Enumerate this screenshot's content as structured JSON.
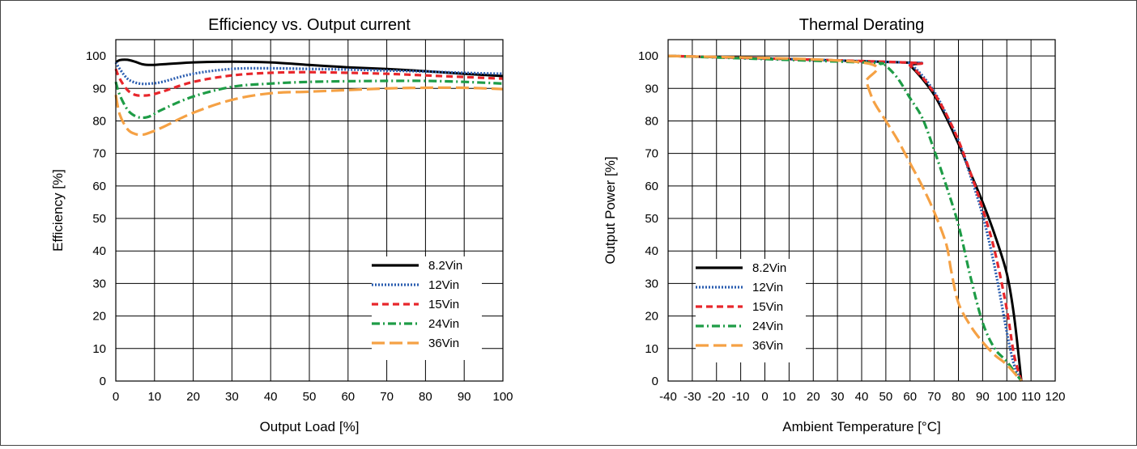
{
  "chart_data": [
    {
      "type": "line",
      "title": "Efficiency vs. Output current",
      "xlabel": "Output Load [%]",
      "ylabel": "Efficiency [%]",
      "xlim": [
        0,
        100
      ],
      "ylim": [
        0,
        105
      ],
      "xticks": [
        "0",
        "10",
        "20",
        "30",
        "40",
        "50",
        "60",
        "70",
        "80",
        "90",
        "100"
      ],
      "yticks": [
        "0",
        "10",
        "20",
        "30",
        "40",
        "50",
        "60",
        "70",
        "80",
        "90",
        "100"
      ],
      "grid": true,
      "legend_position": "bottom-right",
      "series": [
        {
          "name": "8.2Vin",
          "color": "#000000",
          "dash": "solid",
          "x": [
            0,
            1,
            3,
            5,
            7,
            9,
            12,
            20,
            30,
            40,
            50,
            60,
            70,
            80,
            90,
            100
          ],
          "y": [
            98,
            98.7,
            98.8,
            98.2,
            97.4,
            97.2,
            97.4,
            98,
            98.2,
            98,
            97.2,
            96.5,
            96,
            95.3,
            94.5,
            93.8
          ]
        },
        {
          "name": "12Vin",
          "color": "#2a5db0",
          "dash": "dotted",
          "x": [
            0,
            1,
            3,
            5,
            7,
            9,
            12,
            20,
            30,
            40,
            50,
            60,
            70,
            80,
            90,
            100
          ],
          "y": [
            98,
            96,
            93,
            91.8,
            91.4,
            91.5,
            92,
            94.5,
            96,
            96.2,
            96,
            95.8,
            95.5,
            95.2,
            94.8,
            94.5
          ]
        },
        {
          "name": "15Vin",
          "color": "#e8262b",
          "dash": "dashed",
          "x": [
            0,
            1,
            3,
            5,
            7,
            9,
            12,
            20,
            30,
            40,
            50,
            60,
            70,
            80,
            90,
            100
          ],
          "y": [
            96,
            93,
            89.5,
            88,
            87.8,
            88,
            89,
            92,
            94,
            94.8,
            95,
            94.8,
            94.5,
            94,
            93.5,
            93
          ]
        },
        {
          "name": "24Vin",
          "color": "#1e9c46",
          "dash": "dashdot",
          "x": [
            0,
            1,
            3,
            5,
            7,
            9,
            12,
            20,
            30,
            40,
            50,
            60,
            70,
            80,
            90,
            100
          ],
          "y": [
            92,
            88,
            83.5,
            81.5,
            81,
            81.5,
            83.5,
            87.5,
            90.5,
            91.5,
            92,
            92.2,
            92.3,
            92.3,
            92,
            91.5
          ]
        },
        {
          "name": "36Vin",
          "color": "#f5a144",
          "dash": "longdash",
          "x": [
            0,
            1,
            3,
            5,
            7,
            9,
            12,
            20,
            30,
            40,
            50,
            60,
            70,
            80,
            90,
            100
          ],
          "y": [
            88,
            82,
            77.5,
            76,
            75.8,
            76.5,
            78,
            82.5,
            86.5,
            88.5,
            89,
            89.5,
            90,
            90.2,
            90.2,
            89.8
          ]
        }
      ]
    },
    {
      "type": "line",
      "title": "Thermal Derating",
      "xlabel": "Ambient Temperature [°C]",
      "ylabel": "Output Power [%]",
      "xlim": [
        -40,
        120
      ],
      "ylim": [
        0,
        105
      ],
      "xticks": [
        "-40",
        "-30",
        "-20",
        "-10",
        "0",
        "10",
        "20",
        "30",
        "40",
        "50",
        "60",
        "70",
        "80",
        "90",
        "100",
        "110",
        "120"
      ],
      "yticks": [
        "0",
        "10",
        "20",
        "30",
        "40",
        "50",
        "60",
        "70",
        "80",
        "90",
        "100"
      ],
      "grid": true,
      "legend_position": "bottom-left",
      "series": [
        {
          "name": "8.2Vin",
          "color": "#000000",
          "dash": "solid",
          "x": [
            -40,
            57,
            60,
            65,
            70,
            75,
            80,
            85,
            90,
            95,
            100,
            103,
            106
          ],
          "y": [
            100,
            98,
            97,
            93,
            88,
            81,
            73,
            64,
            55,
            45,
            33,
            20,
            0
          ]
        },
        {
          "name": "12Vin",
          "color": "#2a5db0",
          "dash": "dotted",
          "x": [
            -40,
            57,
            60,
            65,
            70,
            75,
            80,
            85,
            90,
            95,
            100,
            103,
            106
          ],
          "y": [
            100,
            98,
            97.5,
            94,
            89,
            82,
            74,
            63,
            51,
            35,
            15,
            5,
            0
          ]
        },
        {
          "name": "15Vin",
          "color": "#e8262b",
          "dash": "dashed",
          "x": [
            -40,
            57,
            60,
            65,
            70,
            75,
            80,
            85,
            90,
            95,
            100,
            103,
            106
          ],
          "y": [
            100,
            98,
            97,
            93.5,
            88.5,
            82,
            74,
            64,
            53,
            40,
            22,
            8,
            0
          ]
        },
        {
          "name": "24Vin",
          "color": "#1e9c46",
          "dash": "dashdot",
          "x": [
            -40,
            40,
            48,
            50,
            55,
            60,
            65,
            70,
            75,
            80,
            85,
            90,
            95,
            100,
            106
          ],
          "y": [
            100,
            98,
            97.5,
            97,
            93,
            87,
            81,
            71,
            60,
            48,
            32,
            18,
            10,
            6,
            0
          ]
        },
        {
          "name": "36Vin",
          "color": "#f5a144",
          "dash": "longdash",
          "x": [
            -40,
            40,
            42,
            45,
            50,
            55,
            60,
            65,
            70,
            75,
            77,
            80,
            85,
            90,
            95,
            100,
            106
          ],
          "y": [
            100,
            98,
            92,
            86,
            80,
            74,
            67,
            60,
            52,
            42,
            34,
            24,
            17,
            12,
            8,
            5,
            0
          ]
        }
      ]
    }
  ]
}
